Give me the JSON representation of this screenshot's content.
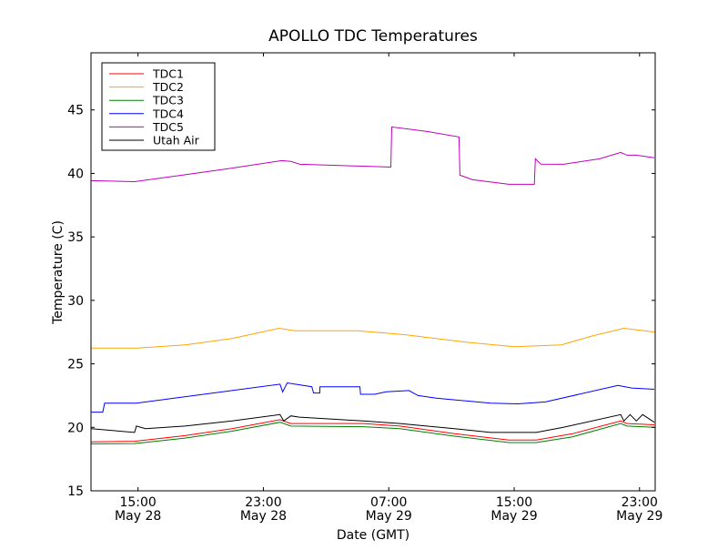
{
  "chart_data": {
    "type": "line",
    "title": "APOLLO TDC Temperatures",
    "xlabel": "Date (GMT)",
    "ylabel": "Temperature (C)",
    "x_unit": "hours since 12:00 May 28 (GMT)",
    "xlim": [
      0,
      36
    ],
    "ylim": [
      15,
      49.5
    ],
    "grid": false,
    "legend_position": "top-left",
    "yticks": [
      15,
      20,
      25,
      30,
      35,
      40,
      45
    ],
    "xticks": [
      {
        "x": 3,
        "time": "15:00",
        "date": "May 28"
      },
      {
        "x": 11,
        "time": "23:00",
        "date": "May 28"
      },
      {
        "x": 19,
        "time": "07:00",
        "date": "May 29"
      },
      {
        "x": 27,
        "time": "15:00",
        "date": "May 29"
      },
      {
        "x": 35,
        "time": "23:00",
        "date": "May 29"
      }
    ],
    "series": [
      {
        "name": "TDC1",
        "color": "#ff0000",
        "x": [
          0,
          2.78,
          6,
          9,
          12.06,
          12.75,
          17.39,
          19.71,
          23.19,
          26.67,
          28.41,
          30.72,
          33.8,
          34.2,
          35.94
        ],
        "y": [
          18.85,
          18.9,
          19.35,
          19.9,
          20.6,
          20.3,
          20.3,
          20.1,
          19.5,
          19.0,
          19.0,
          19.5,
          20.5,
          20.3,
          20.2
        ]
      },
      {
        "name": "TDC2",
        "color": "#ffa500",
        "x": [
          0,
          3,
          6,
          9,
          12,
          13,
          17,
          20,
          24,
          27,
          30,
          32,
          34,
          36
        ],
        "y": [
          26.25,
          26.25,
          26.5,
          27.0,
          27.8,
          27.6,
          27.6,
          27.3,
          26.7,
          26.35,
          26.5,
          27.2,
          27.8,
          27.5
        ]
      },
      {
        "name": "TDC3",
        "color": "#008000",
        "x": [
          0,
          2.78,
          6,
          9,
          12.06,
          12.75,
          17.39,
          19.71,
          23.19,
          26.67,
          28.41,
          30.72,
          33.8,
          34.2,
          35.94
        ],
        "y": [
          18.7,
          18.72,
          19.15,
          19.7,
          20.4,
          20.1,
          20.05,
          19.9,
          19.3,
          18.8,
          18.8,
          19.25,
          20.3,
          20.1,
          20.0
        ]
      },
      {
        "name": "TDC4",
        "color": "#0000ff",
        "x": [
          0,
          0.75,
          0.87,
          2.9,
          12.06,
          12.23,
          12.52,
          14.09,
          14.2,
          14.6,
          14.61,
          17.16,
          17.2,
          18.09,
          18.84,
          20.29,
          20.87,
          22.03,
          25.5,
          27.25,
          28.99,
          33.62,
          34.5,
          35.94
        ],
        "y": [
          21.2,
          21.2,
          21.9,
          21.9,
          23.4,
          22.8,
          23.5,
          23.2,
          22.7,
          22.7,
          23.2,
          23.2,
          22.6,
          22.6,
          22.8,
          22.9,
          22.5,
          22.3,
          21.9,
          21.85,
          22.0,
          23.3,
          23.1,
          23.0
        ]
      },
      {
        "name": "TDC5",
        "color": "#bf00bf",
        "x": [
          0,
          2.78,
          5.8,
          8.7,
          12.17,
          12.75,
          13.33,
          17.39,
          19.13,
          19.19,
          21.45,
          23.48,
          23.54,
          24.35,
          26.67,
          28.29,
          28.35,
          28.7,
          30.14,
          32.46,
          33.8,
          34.2,
          34.78,
          35.94
        ],
        "y": [
          39.43,
          39.35,
          39.86,
          40.36,
          41.01,
          40.94,
          40.72,
          40.57,
          40.5,
          43.66,
          43.3,
          42.87,
          39.86,
          39.5,
          39.14,
          39.14,
          41.16,
          40.73,
          40.72,
          41.15,
          41.65,
          41.44,
          41.44,
          41.23
        ]
      },
      {
        "name": "Utah Air",
        "color": "#000000",
        "x": [
          0,
          2.78,
          2.9,
          3.48,
          6,
          9,
          12.06,
          12.3,
          12.75,
          13.3,
          17.39,
          19.71,
          23.19,
          25.5,
          28.41,
          30.14,
          33.8,
          34.0,
          34.4,
          34.8,
          35.2,
          35.94
        ],
        "y": [
          19.9,
          19.6,
          20.1,
          19.9,
          20.1,
          20.5,
          21.0,
          20.5,
          20.9,
          20.8,
          20.5,
          20.3,
          19.9,
          19.6,
          19.6,
          20.0,
          21.0,
          20.5,
          21.0,
          20.5,
          21.0,
          20.4
        ]
      }
    ]
  }
}
